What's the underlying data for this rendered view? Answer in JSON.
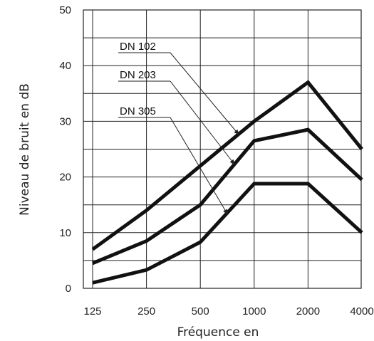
{
  "chart_data": {
    "type": "line",
    "title": "",
    "xlabel": "Fréquence en",
    "ylabel": "Niveau de bruit en dB",
    "categories": [
      "125",
      "250",
      "500",
      "1000",
      "2000",
      "4000"
    ],
    "yticks": [
      "0",
      "10",
      "20",
      "30",
      "40",
      "50"
    ],
    "ylim": [
      0,
      50
    ],
    "grid": true,
    "series": [
      {
        "name": "DN 102",
        "values": [
          7,
          14,
          22,
          30,
          37,
          25
        ]
      },
      {
        "name": "DN 203",
        "values": [
          4.5,
          8.5,
          15,
          26.5,
          28.5,
          19.5
        ]
      },
      {
        "name": "DN 305",
        "values": [
          1,
          3.3,
          8.3,
          18.8,
          18.8,
          10
        ]
      }
    ]
  }
}
